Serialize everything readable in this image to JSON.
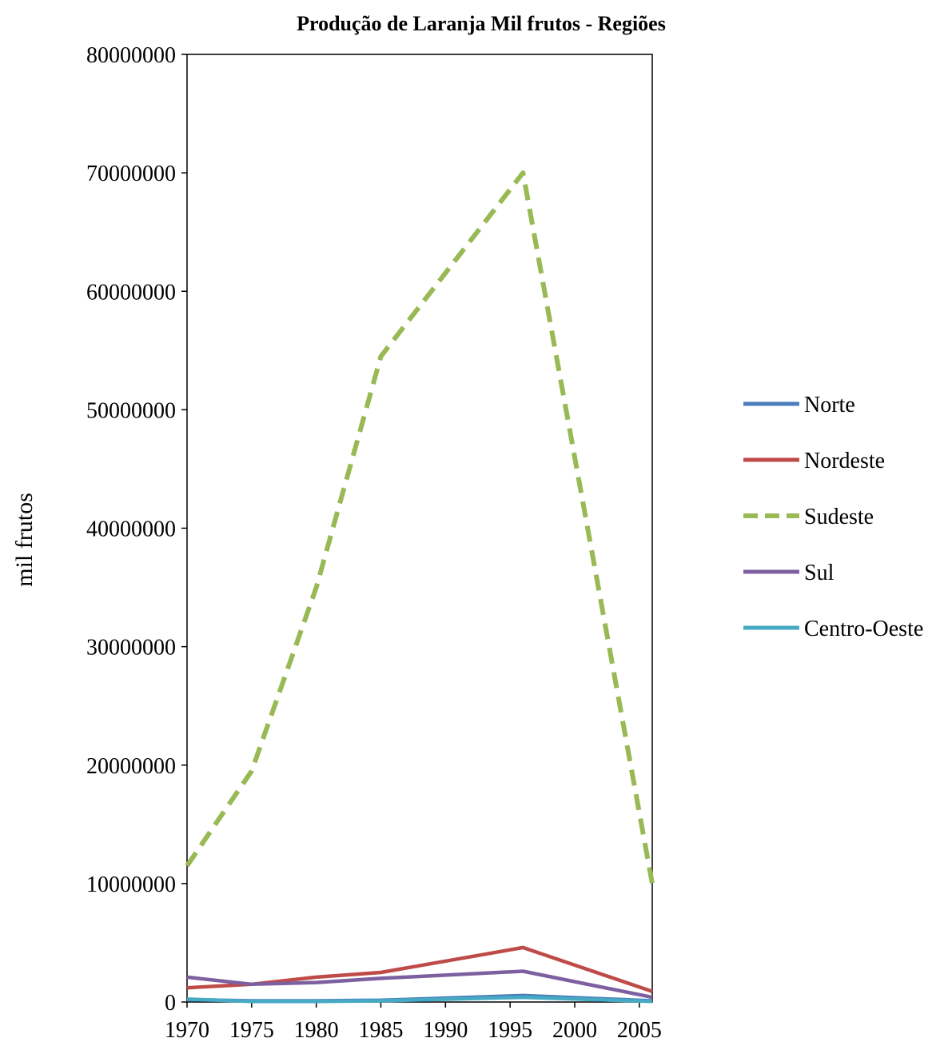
{
  "chart_data": {
    "type": "line",
    "title": "Produção de Laranja Mil frutos - Regiões",
    "ylabel": "mil frutos",
    "xlabel": "",
    "x": [
      1970,
      1975,
      1980,
      1985,
      1996,
      2006
    ],
    "xlim": [
      1970,
      2006
    ],
    "x_ticks": [
      1970,
      1975,
      1980,
      1985,
      1990,
      1995,
      2000,
      2005
    ],
    "ylim": [
      0,
      80000000
    ],
    "y_ticks": [
      0,
      10000000,
      20000000,
      30000000,
      40000000,
      50000000,
      60000000,
      70000000,
      80000000
    ],
    "grid": false,
    "legend_position": "right",
    "series": [
      {
        "name": "Norte",
        "color": "#4a7ebb",
        "dash": false,
        "values": [
          200000,
          100000,
          100000,
          150000,
          550000,
          100000
        ]
      },
      {
        "name": "Nordeste",
        "color": "#be4b48",
        "dash": false,
        "values": [
          1200000,
          1500000,
          2100000,
          2500000,
          4600000,
          900000
        ]
      },
      {
        "name": "Sudeste",
        "color": "#98b954",
        "dash": true,
        "values": [
          11500000,
          19500000,
          35000000,
          54500000,
          70000000,
          10000000
        ]
      },
      {
        "name": "Sul",
        "color": "#7d60a0",
        "dash": false,
        "values": [
          2100000,
          1500000,
          1650000,
          2000000,
          2600000,
          400000
        ]
      },
      {
        "name": "Centro-Oeste",
        "color": "#46aac5",
        "dash": false,
        "values": [
          250000,
          50000,
          50000,
          100000,
          400000,
          50000
        ]
      }
    ]
  }
}
